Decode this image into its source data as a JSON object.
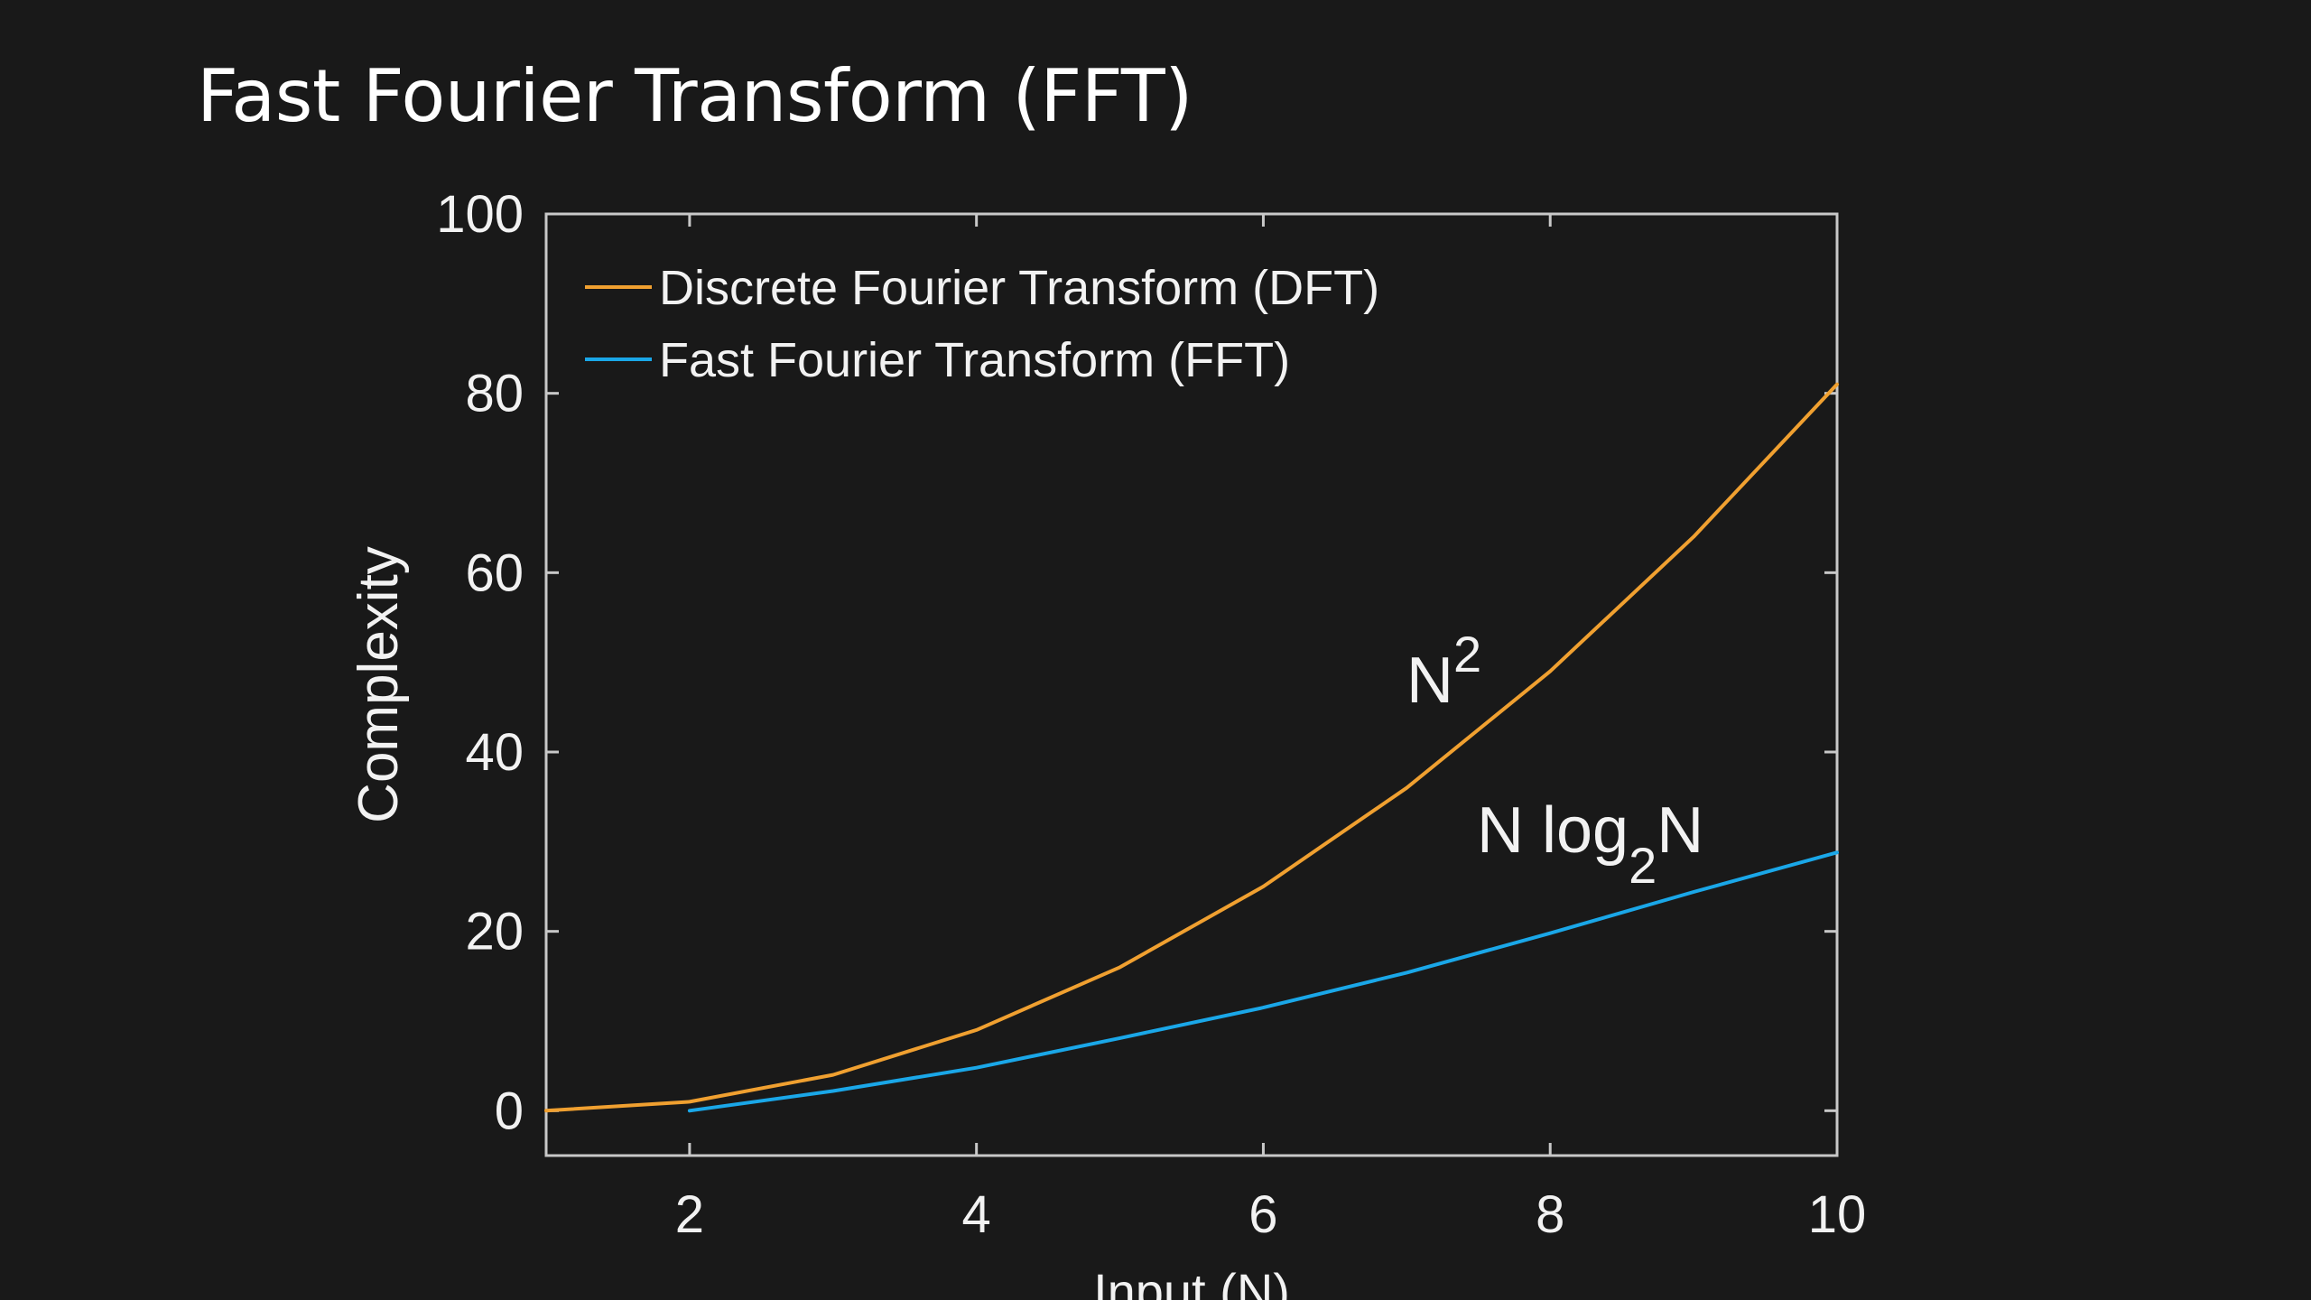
{
  "slide": {
    "title": "Fast Fourier Transform (FFT)"
  },
  "colors": {
    "background": "#191919",
    "axes": "#c8c8c8",
    "text": "#f2f2f2",
    "dft": "#f0a030",
    "fft": "#1aa7e8"
  },
  "chart_data": {
    "type": "line",
    "xlabel": "Input (N)",
    "ylabel": "Complexity",
    "xlim": [
      1,
      10
    ],
    "ylim": [
      -5,
      100
    ],
    "xticks": [
      2,
      4,
      6,
      8,
      10
    ],
    "yticks": [
      0,
      20,
      40,
      60,
      80,
      100
    ],
    "grid": false,
    "legend_position": "top-left",
    "series": [
      {
        "name": "Discrete Fourier Transform (DFT)",
        "color": "#f0a030",
        "x": [
          1,
          2,
          3,
          4,
          5,
          6,
          7,
          8,
          9,
          10
        ],
        "y": [
          0,
          1,
          4,
          9,
          16,
          25,
          36,
          49,
          64,
          81
        ]
      },
      {
        "name": "Fast Fourier Transform (FFT)",
        "color": "#1aa7e8",
        "x": [
          2,
          3,
          4,
          5,
          6,
          7,
          8,
          9,
          10
        ],
        "y": [
          0,
          2.2,
          4.8,
          8.1,
          11.5,
          15.4,
          19.8,
          24.4,
          28.8
        ]
      }
    ],
    "annotations": [
      {
        "base": "N",
        "sup": "2",
        "x": 7.0,
        "y": 46
      },
      {
        "text_before": "N log",
        "sub": "2",
        "text_after": "N",
        "x": 7.5,
        "y": 30
      }
    ]
  }
}
